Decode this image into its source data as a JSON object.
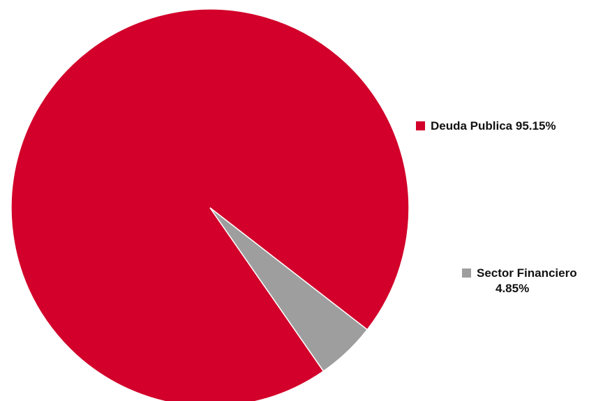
{
  "chart_data": {
    "type": "pie",
    "title": "",
    "series": [
      {
        "labels": [
          "Deuda Publica",
          "Sector Financiero"
        ],
        "values": [
          95.15,
          4.85
        ],
        "colors": [
          "#D2002A",
          "#9E9E9E"
        ]
      }
    ],
    "legend": {
      "placement": "right",
      "entries": [
        {
          "label": "Deuda Publica",
          "value_text": "95.15%",
          "color": "#D2002A"
        },
        {
          "label": "Sector Financiero",
          "value_text": "4.85%",
          "color": "#9E9E9E"
        }
      ]
    }
  }
}
